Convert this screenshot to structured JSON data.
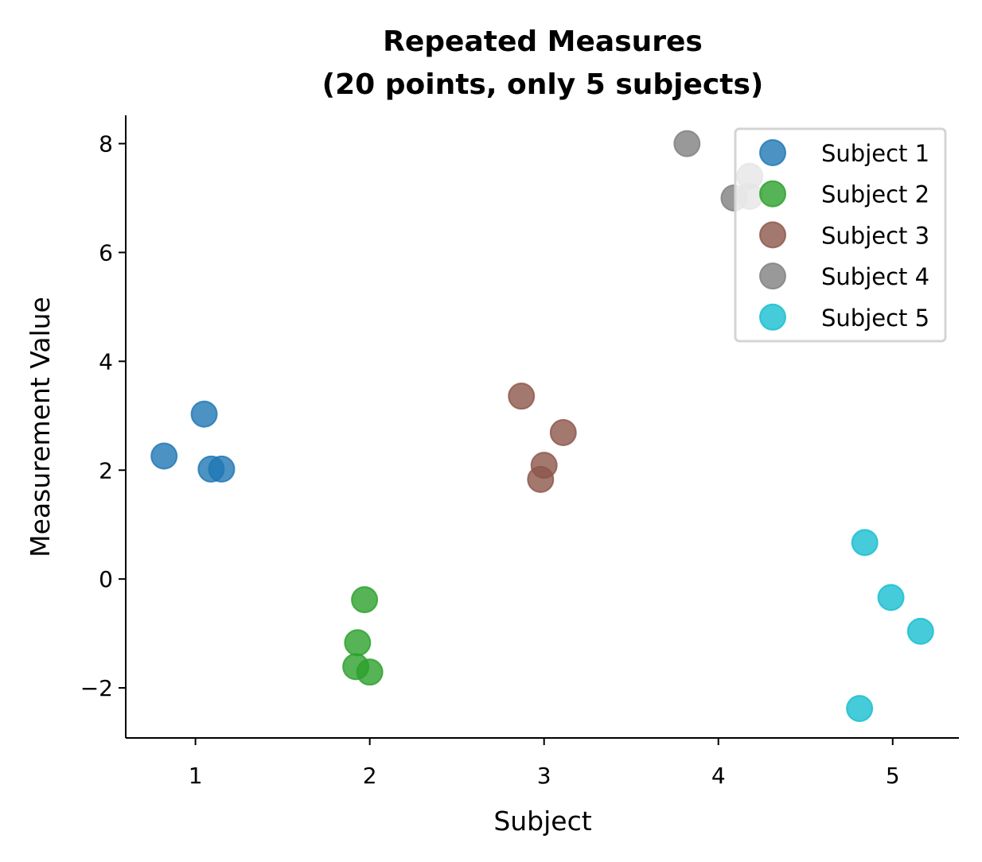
{
  "chart_data": {
    "type": "scatter",
    "title": "Repeated Measures\n(20 points, only 5 subjects)",
    "title_lines": [
      "Repeated Measures",
      "(20 points, only 5 subjects)"
    ],
    "xlabel": "Subject",
    "ylabel": "Measurement Value",
    "xlim": [
      0.6,
      5.38
    ],
    "ylim": [
      -2.92,
      8.52
    ],
    "xticks": [
      1,
      2,
      3,
      4,
      5
    ],
    "xtick_labels": [
      "1",
      "2",
      "3",
      "4",
      "5"
    ],
    "yticks": [
      -2,
      0,
      2,
      4,
      6,
      8
    ],
    "ytick_labels": [
      "−2",
      "0",
      "2",
      "4",
      "6",
      "8"
    ],
    "grid": false,
    "legend_position": "top-right",
    "series": [
      {
        "name": "Subject 1",
        "color": "#1f77b4",
        "points": [
          [
            0.82,
            2.26
          ],
          [
            1.05,
            3.03
          ],
          [
            1.09,
            2.02
          ],
          [
            1.15,
            2.02
          ]
        ]
      },
      {
        "name": "Subject 2",
        "color": "#2ca02c",
        "points": [
          [
            1.97,
            -0.38
          ],
          [
            1.93,
            -1.17
          ],
          [
            1.92,
            -1.61
          ],
          [
            2.0,
            -1.71
          ]
        ]
      },
      {
        "name": "Subject 3",
        "color": "#8c564b",
        "points": [
          [
            2.87,
            3.36
          ],
          [
            3.11,
            2.69
          ],
          [
            3.0,
            2.09
          ],
          [
            2.98,
            1.83
          ]
        ]
      },
      {
        "name": "Subject 4",
        "color": "#7f7f7f",
        "points": [
          [
            3.82,
            8.0
          ],
          [
            4.09,
            7.0
          ],
          [
            4.18,
            7.03
          ],
          [
            4.18,
            7.4
          ]
        ]
      },
      {
        "name": "Subject 5",
        "color": "#17becf",
        "points": [
          [
            4.84,
            0.67
          ],
          [
            4.99,
            -0.34
          ],
          [
            5.16,
            -0.96
          ],
          [
            4.81,
            -2.38
          ]
        ]
      }
    ]
  }
}
